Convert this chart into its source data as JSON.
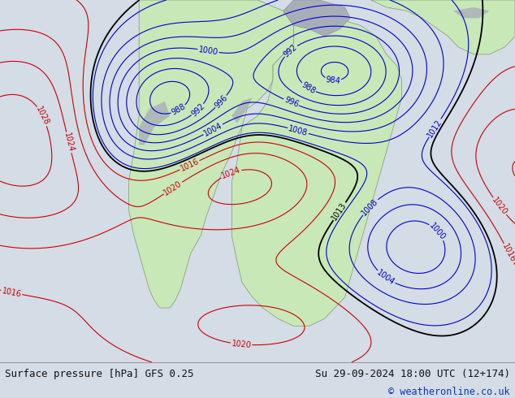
{
  "title_left": "Surface pressure [hPa] GFS 0.25",
  "title_right": "Su 29-09-2024 18:00 UTC (12+174)",
  "copyright": "© weatheronline.co.uk",
  "bg_color": "#d4dce6",
  "land_color": "#c8e8b8",
  "footer_bg": "#e0e4e8",
  "footer_text_color": "#111111",
  "red_contour_color": "#cc0000",
  "blue_contour_color": "#0000cc",
  "black_contour_color": "#000000",
  "gray_terrain_color": "#a8aeb8",
  "label_fontsize": 7,
  "footer_fontsize": 9,
  "fig_width": 6.34,
  "fig_height": 4.9
}
